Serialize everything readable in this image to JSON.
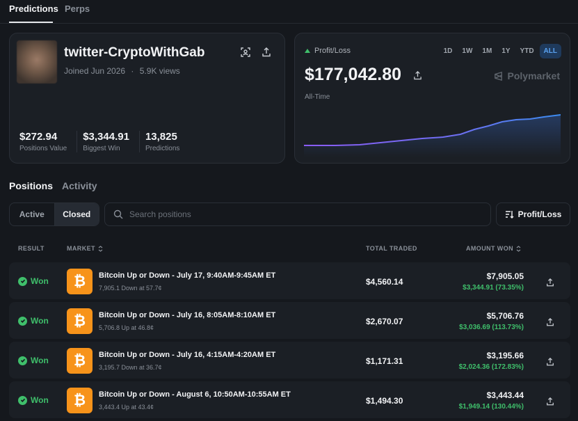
{
  "top_tabs": [
    "Predictions",
    "Perps"
  ],
  "profile": {
    "username": "twitter-CryptoWithGab",
    "joined": "Joined Jun 2026",
    "views": "5.9K views",
    "stats": [
      {
        "value": "$272.94",
        "label": "Positions Value"
      },
      {
        "value": "$3,344.91",
        "label": "Biggest Win"
      },
      {
        "value": "13,825",
        "label": "Predictions"
      }
    ]
  },
  "pnl": {
    "label": "Profit/Loss",
    "value": "$177,042.80",
    "period": "All-Time",
    "brand": "Polymarket",
    "ranges": [
      "1D",
      "1W",
      "1M",
      "1Y",
      "YTD",
      "ALL"
    ],
    "active_range": "ALL",
    "colors": {
      "line_start": "#8b5cf6",
      "line_end": "#3b8cf0",
      "up": "#3fbf6b"
    }
  },
  "section_tabs": [
    "Positions",
    "Activity"
  ],
  "filters": {
    "toggles": [
      "Active",
      "Closed"
    ],
    "active": "Closed",
    "search_placeholder": "Search positions",
    "sort_label": "Profit/Loss"
  },
  "table": {
    "headers": {
      "result": "RESULT",
      "market": "MARKET",
      "traded": "TOTAL TRADED",
      "won": "AMOUNT WON"
    },
    "rows": [
      {
        "result": "Won",
        "title": "Bitcoin Up or Down - July 17, 9:40AM-9:45AM ET",
        "sub": "7,905.1 Down at 57.7¢",
        "traded": "$4,560.14",
        "won": "$7,905.05",
        "profit": "$3,344.91 (73.35%)"
      },
      {
        "result": "Won",
        "title": "Bitcoin Up or Down - July 16, 8:05AM-8:10AM ET",
        "sub": "5,706.8 Up at 46.8¢",
        "traded": "$2,670.07",
        "won": "$5,706.76",
        "profit": "$3,036.69 (113.73%)"
      },
      {
        "result": "Won",
        "title": "Bitcoin Up or Down - July 16, 4:15AM-4:20AM ET",
        "sub": "3,195.7 Down at 36.7¢",
        "traded": "$1,171.31",
        "won": "$3,195.66",
        "profit": "$2,024.36 (172.83%)"
      },
      {
        "result": "Won",
        "title": "Bitcoin Up or Down - August 6, 10:50AM-10:55AM ET",
        "sub": "3,443.4 Up at 43.4¢",
        "traded": "$1,494.30",
        "won": "$3,443.44",
        "profit": "$1,949.14 (130.44%)"
      }
    ]
  }
}
